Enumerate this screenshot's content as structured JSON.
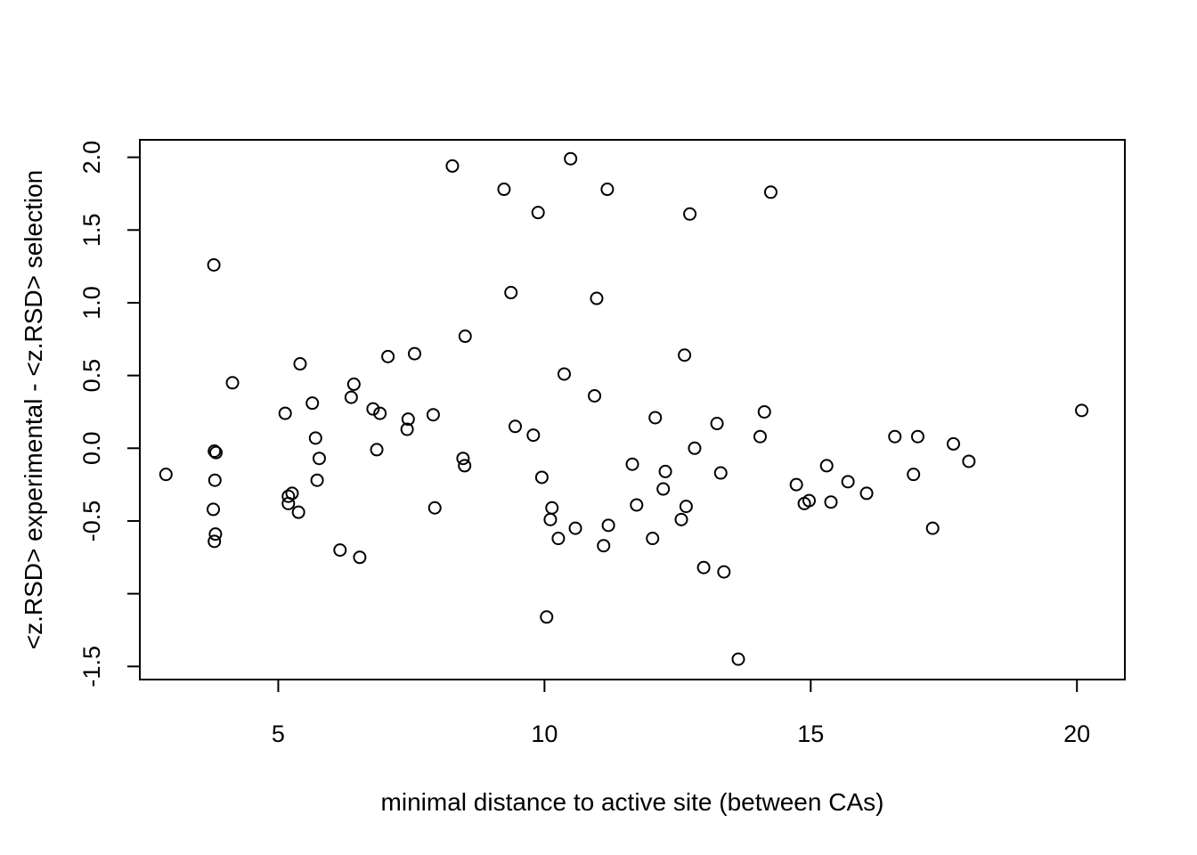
{
  "chart_data": {
    "type": "scatter",
    "title": "",
    "xlabel": "minimal distance to active site (between CAs)",
    "ylabel": "<z.RSD> experimental - <z.RSD> selection",
    "xlim": [
      2.4,
      20.9
    ],
    "ylim": [
      -1.59,
      2.12
    ],
    "x_ticks": [
      5,
      10,
      15,
      20
    ],
    "x_tick_labels": [
      "5",
      "10",
      "15",
      "20"
    ],
    "y_ticks": [
      -1.5,
      -1.0,
      -0.5,
      0.0,
      0.5,
      1.0,
      1.5,
      2.0
    ],
    "y_tick_labels": [
      "-1.5",
      "",
      "-0.5",
      "0.0",
      "0.5",
      "1.0",
      "1.5",
      "2.0"
    ],
    "grid": false,
    "legend": "none",
    "marker": "open-circle",
    "color": "#000000",
    "points": [
      [
        2.89,
        -0.18
      ],
      [
        3.8,
        -0.02
      ],
      [
        3.83,
        -0.03
      ],
      [
        3.81,
        -0.22
      ],
      [
        3.78,
        -0.42
      ],
      [
        3.82,
        -0.59
      ],
      [
        3.8,
        -0.64
      ],
      [
        3.79,
        1.26
      ],
      [
        4.14,
        0.45
      ],
      [
        5.13,
        0.24
      ],
      [
        5.19,
        -0.33
      ],
      [
        5.19,
        -0.38
      ],
      [
        5.26,
        -0.31
      ],
      [
        5.38,
        -0.44
      ],
      [
        5.41,
        0.58
      ],
      [
        5.64,
        0.31
      ],
      [
        5.7,
        0.07
      ],
      [
        5.73,
        -0.22
      ],
      [
        5.77,
        -0.07
      ],
      [
        6.16,
        -0.7
      ],
      [
        6.37,
        0.35
      ],
      [
        6.42,
        0.44
      ],
      [
        6.53,
        -0.75
      ],
      [
        6.78,
        0.27
      ],
      [
        6.85,
        -0.01
      ],
      [
        6.91,
        0.24
      ],
      [
        7.06,
        0.63
      ],
      [
        7.42,
        0.13
      ],
      [
        7.44,
        0.2
      ],
      [
        7.56,
        0.65
      ],
      [
        7.91,
        0.23
      ],
      [
        7.94,
        -0.41
      ],
      [
        8.27,
        1.94
      ],
      [
        8.47,
        -0.07
      ],
      [
        8.5,
        -0.12
      ],
      [
        8.51,
        0.77
      ],
      [
        9.24,
        1.78
      ],
      [
        9.37,
        1.07
      ],
      [
        9.45,
        0.15
      ],
      [
        9.79,
        0.09
      ],
      [
        9.88,
        1.62
      ],
      [
        9.95,
        -0.2
      ],
      [
        10.04,
        -1.16
      ],
      [
        10.11,
        -0.49
      ],
      [
        10.14,
        -0.41
      ],
      [
        10.26,
        -0.62
      ],
      [
        10.37,
        0.51
      ],
      [
        10.49,
        1.99
      ],
      [
        10.58,
        -0.55
      ],
      [
        10.94,
        0.36
      ],
      [
        10.98,
        1.03
      ],
      [
        11.11,
        -0.67
      ],
      [
        11.18,
        1.78
      ],
      [
        11.2,
        -0.53
      ],
      [
        11.65,
        -0.11
      ],
      [
        11.73,
        -0.39
      ],
      [
        12.03,
        -0.62
      ],
      [
        12.08,
        0.21
      ],
      [
        12.23,
        -0.28
      ],
      [
        12.27,
        -0.16
      ],
      [
        12.57,
        -0.49
      ],
      [
        12.63,
        0.64
      ],
      [
        12.66,
        -0.4
      ],
      [
        12.73,
        1.61
      ],
      [
        12.82,
        0.0
      ],
      [
        12.99,
        -0.82
      ],
      [
        13.24,
        0.17
      ],
      [
        13.31,
        -0.17
      ],
      [
        13.37,
        -0.85
      ],
      [
        13.64,
        -1.45
      ],
      [
        14.05,
        0.08
      ],
      [
        14.13,
        0.25
      ],
      [
        14.25,
        1.76
      ],
      [
        14.73,
        -0.25
      ],
      [
        14.88,
        -0.38
      ],
      [
        14.97,
        -0.36
      ],
      [
        15.3,
        -0.12
      ],
      [
        15.38,
        -0.37
      ],
      [
        15.7,
        -0.23
      ],
      [
        16.05,
        -0.31
      ],
      [
        16.58,
        0.08
      ],
      [
        16.93,
        -0.18
      ],
      [
        17.01,
        0.08
      ],
      [
        17.29,
        -0.55
      ],
      [
        17.68,
        0.03
      ],
      [
        17.97,
        -0.09
      ],
      [
        20.09,
        0.26
      ]
    ]
  }
}
